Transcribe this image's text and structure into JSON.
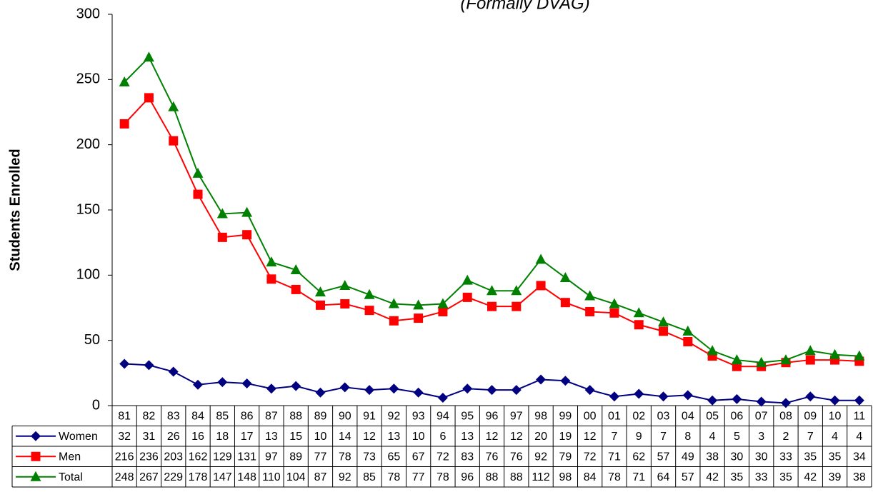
{
  "chart_data": {
    "type": "line",
    "subtitle": "(Formally DVAG)",
    "ylabel": "Students Enrolled",
    "categories": [
      "81",
      "82",
      "83",
      "84",
      "85",
      "86",
      "87",
      "88",
      "89",
      "90",
      "91",
      "92",
      "93",
      "94",
      "95",
      "96",
      "97",
      "98",
      "99",
      "00",
      "01",
      "02",
      "03",
      "04",
      "05",
      "06",
      "07",
      "08",
      "09",
      "10",
      "11"
    ],
    "series": [
      {
        "name": "Women",
        "color": "#000080",
        "marker": "diamond",
        "values": [
          32,
          31,
          26,
          16,
          18,
          17,
          13,
          15,
          10,
          14,
          12,
          13,
          10,
          6,
          13,
          12,
          12,
          20,
          19,
          12,
          7,
          9,
          7,
          8,
          4,
          5,
          3,
          2,
          7,
          4,
          4
        ]
      },
      {
        "name": "Men",
        "color": "#ff0000",
        "marker": "square",
        "values": [
          216,
          236,
          203,
          162,
          129,
          131,
          97,
          89,
          77,
          78,
          73,
          65,
          67,
          72,
          83,
          76,
          76,
          92,
          79,
          72,
          71,
          62,
          57,
          49,
          38,
          30,
          30,
          33,
          35,
          35,
          34
        ]
      },
      {
        "name": "Total",
        "color": "#008000",
        "marker": "triangle",
        "values": [
          248,
          267,
          229,
          178,
          147,
          148,
          110,
          104,
          87,
          92,
          85,
          78,
          77,
          78,
          96,
          88,
          88,
          112,
          98,
          84,
          78,
          71,
          64,
          57,
          42,
          35,
          33,
          35,
          42,
          39,
          38
        ]
      }
    ],
    "ylim": [
      0,
      300
    ],
    "yticks": [
      0,
      50,
      100,
      150,
      200,
      250,
      300
    ]
  }
}
